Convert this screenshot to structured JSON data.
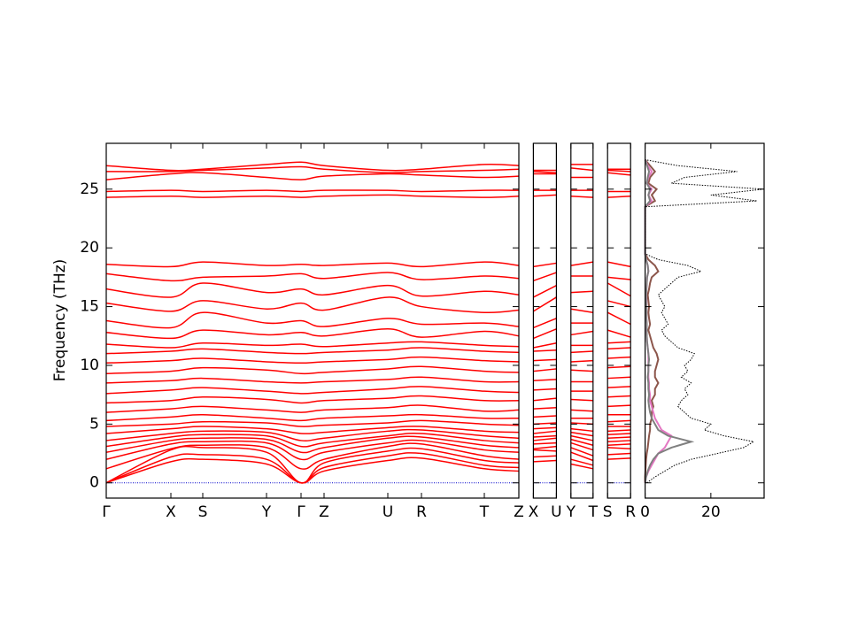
{
  "chart_data": {
    "type": "band-dos",
    "ylabel": "Frequency (THz)",
    "ylim": [
      -1.3,
      28.9
    ],
    "yticks": [
      0,
      5,
      10,
      15,
      20,
      25
    ],
    "band_color": "#ff0000",
    "zero_line_color": "#0000cc",
    "panels": [
      {
        "kdist": [
          0,
          73,
          109,
          181,
          220,
          246,
          318,
          356,
          427,
          466
        ],
        "klabels": [
          "Γ",
          "X",
          "S",
          "Y",
          "Γ",
          "Z",
          "U",
          "R",
          "T",
          "Z"
        ],
        "bands": [
          [
            0,
            1.8,
            2.0,
            1.6,
            0,
            1.0,
            1.9,
            2.1,
            1.2,
            1.0
          ],
          [
            0,
            2.2,
            2.4,
            2.0,
            0,
            1.3,
            2.3,
            2.5,
            1.5,
            1.3
          ],
          [
            0,
            2.8,
            3.0,
            2.6,
            0,
            1.7,
            2.7,
            2.9,
            1.9,
            1.7
          ],
          [
            1.2,
            2.9,
            3.2,
            3.0,
            1.2,
            2.0,
            3.1,
            3.3,
            2.3,
            2.0
          ],
          [
            2.0,
            3.3,
            3.5,
            3.4,
            2.0,
            2.6,
            3.4,
            3.6,
            2.8,
            2.6
          ],
          [
            2.6,
            3.6,
            3.8,
            3.7,
            2.6,
            3.0,
            3.8,
            3.9,
            3.2,
            3.0
          ],
          [
            3.1,
            3.9,
            4.1,
            4.0,
            3.1,
            3.4,
            4.0,
            4.2,
            3.6,
            3.4
          ],
          [
            3.6,
            4.2,
            4.4,
            4.3,
            3.6,
            3.8,
            4.4,
            4.5,
            4.0,
            3.8
          ],
          [
            4.2,
            4.6,
            4.8,
            4.6,
            4.2,
            4.3,
            4.7,
            4.8,
            4.4,
            4.3
          ],
          [
            4.8,
            5.0,
            5.2,
            5.1,
            4.8,
            4.9,
            5.1,
            5.3,
            5.0,
            4.9
          ],
          [
            5.3,
            5.6,
            5.8,
            5.5,
            5.3,
            5.5,
            5.7,
            5.8,
            5.5,
            5.5
          ],
          [
            6.0,
            6.3,
            6.5,
            6.2,
            6.0,
            6.2,
            6.4,
            6.6,
            6.1,
            6.2
          ],
          [
            6.8,
            7.0,
            7.3,
            7.1,
            6.8,
            7.0,
            7.2,
            7.4,
            7.0,
            7.0
          ],
          [
            7.6,
            7.9,
            8.1,
            7.8,
            7.6,
            7.7,
            8.0,
            8.2,
            7.8,
            7.7
          ],
          [
            8.5,
            8.7,
            8.9,
            8.6,
            8.5,
            8.6,
            8.8,
            9.0,
            8.6,
            8.6
          ],
          [
            9.3,
            9.5,
            9.8,
            9.6,
            9.3,
            9.4,
            9.7,
            9.9,
            9.5,
            9.4
          ],
          [
            10.2,
            10.4,
            10.6,
            10.3,
            10.2,
            10.3,
            10.5,
            10.7,
            10.4,
            10.3
          ],
          [
            11.0,
            11.2,
            11.4,
            11.1,
            11.0,
            11.1,
            11.3,
            11.5,
            11.2,
            11.1
          ],
          [
            11.8,
            11.5,
            11.9,
            11.7,
            11.8,
            11.6,
            11.9,
            12.0,
            11.7,
            11.6
          ],
          [
            12.8,
            12.3,
            13.0,
            12.6,
            12.8,
            12.5,
            13.1,
            12.4,
            12.9,
            12.5
          ],
          [
            13.8,
            13.2,
            14.5,
            13.6,
            13.8,
            13.3,
            14.0,
            13.5,
            13.6,
            13.3
          ],
          [
            15.3,
            14.6,
            15.5,
            14.8,
            15.3,
            14.7,
            15.8,
            15.0,
            14.5,
            14.7
          ],
          [
            16.5,
            15.8,
            17.0,
            16.2,
            16.5,
            16.0,
            16.8,
            15.9,
            16.3,
            16.0
          ],
          [
            17.8,
            17.2,
            17.5,
            17.6,
            17.8,
            17.4,
            17.9,
            17.3,
            17.6,
            17.4
          ],
          [
            18.6,
            18.4,
            18.8,
            18.5,
            18.6,
            18.5,
            18.7,
            18.4,
            18.8,
            18.5
          ],
          [
            24.3,
            24.4,
            24.3,
            24.4,
            24.3,
            24.4,
            24.5,
            24.4,
            24.3,
            24.4
          ],
          [
            24.8,
            24.9,
            24.8,
            24.9,
            24.8,
            24.9,
            24.9,
            24.8,
            24.9,
            24.9
          ],
          [
            25.8,
            26.3,
            26.4,
            26.0,
            25.8,
            26.1,
            26.3,
            26.2,
            26.0,
            26.1
          ],
          [
            26.5,
            26.5,
            26.6,
            26.8,
            26.9,
            26.7,
            26.4,
            26.5,
            26.6,
            26.7
          ],
          [
            27.0,
            26.6,
            26.7,
            27.1,
            27.3,
            27.0,
            26.6,
            26.7,
            27.1,
            27.0
          ]
        ]
      },
      {
        "kdist": [
          0,
          26
        ],
        "klabels": [
          "X",
          "U"
        ],
        "bands": [
          [
            1.8,
            1.9
          ],
          [
            2.2,
            2.3
          ],
          [
            2.8,
            2.7
          ],
          [
            2.9,
            3.1
          ],
          [
            3.3,
            3.4
          ],
          [
            3.6,
            3.8
          ],
          [
            3.9,
            4.0
          ],
          [
            4.2,
            4.4
          ],
          [
            4.6,
            4.7
          ],
          [
            5.0,
            5.1
          ],
          [
            5.6,
            5.7
          ],
          [
            6.3,
            6.4
          ],
          [
            7.0,
            7.2
          ],
          [
            7.9,
            8.0
          ],
          [
            8.7,
            8.8
          ],
          [
            9.5,
            9.7
          ],
          [
            10.4,
            10.5
          ],
          [
            11.2,
            11.3
          ],
          [
            11.5,
            11.9
          ],
          [
            12.3,
            13.1
          ],
          [
            13.2,
            14.0
          ],
          [
            14.6,
            15.8
          ],
          [
            15.8,
            16.8
          ],
          [
            17.2,
            17.9
          ],
          [
            18.4,
            18.7
          ],
          [
            24.4,
            24.5
          ],
          [
            24.9,
            24.9
          ],
          [
            26.3,
            26.3
          ],
          [
            26.5,
            26.4
          ],
          [
            26.6,
            26.6
          ]
        ]
      },
      {
        "kdist": [
          0,
          25
        ],
        "klabels": [
          "Y",
          "T"
        ],
        "bands": [
          [
            1.6,
            1.2
          ],
          [
            2.0,
            1.5
          ],
          [
            2.6,
            1.9
          ],
          [
            3.0,
            2.3
          ],
          [
            3.4,
            2.8
          ],
          [
            3.7,
            3.2
          ],
          [
            4.0,
            3.6
          ],
          [
            4.3,
            4.0
          ],
          [
            4.6,
            4.4
          ],
          [
            5.1,
            5.0
          ],
          [
            5.5,
            5.5
          ],
          [
            6.2,
            6.1
          ],
          [
            7.1,
            7.0
          ],
          [
            7.8,
            7.8
          ],
          [
            8.6,
            8.6
          ],
          [
            9.6,
            9.5
          ],
          [
            10.3,
            10.4
          ],
          [
            11.1,
            11.2
          ],
          [
            11.7,
            11.7
          ],
          [
            12.6,
            12.9
          ],
          [
            13.6,
            13.6
          ],
          [
            14.8,
            14.5
          ],
          [
            16.2,
            16.3
          ],
          [
            17.6,
            17.6
          ],
          [
            18.5,
            18.8
          ],
          [
            24.4,
            24.3
          ],
          [
            24.9,
            24.9
          ],
          [
            26.0,
            26.0
          ],
          [
            26.8,
            26.6
          ],
          [
            27.1,
            27.1
          ]
        ]
      },
      {
        "kdist": [
          0,
          26
        ],
        "klabels": [
          "S",
          "R"
        ],
        "bands": [
          [
            2.0,
            2.1
          ],
          [
            2.4,
            2.5
          ],
          [
            3.0,
            2.9
          ],
          [
            3.2,
            3.3
          ],
          [
            3.5,
            3.6
          ],
          [
            3.8,
            3.9
          ],
          [
            4.1,
            4.2
          ],
          [
            4.4,
            4.5
          ],
          [
            4.8,
            4.8
          ],
          [
            5.2,
            5.3
          ],
          [
            5.8,
            5.8
          ],
          [
            6.5,
            6.6
          ],
          [
            7.3,
            7.4
          ],
          [
            8.1,
            8.2
          ],
          [
            8.9,
            9.0
          ],
          [
            9.8,
            9.9
          ],
          [
            10.6,
            10.7
          ],
          [
            11.4,
            11.5
          ],
          [
            11.9,
            12.0
          ],
          [
            13.0,
            12.4
          ],
          [
            14.5,
            13.5
          ],
          [
            15.5,
            15.0
          ],
          [
            17.0,
            15.9
          ],
          [
            17.5,
            17.3
          ],
          [
            18.8,
            18.4
          ],
          [
            24.3,
            24.4
          ],
          [
            24.8,
            24.8
          ],
          [
            26.4,
            26.2
          ],
          [
            26.6,
            26.5
          ],
          [
            26.7,
            26.7
          ]
        ]
      }
    ],
    "dos": {
      "xlim": [
        0,
        36.2
      ],
      "xticks": [
        0,
        20
      ],
      "frequencies": [
        0,
        0.5,
        1,
        1.5,
        2,
        2.5,
        3,
        3.5,
        4,
        4.5,
        5,
        5.5,
        6,
        6.5,
        7,
        7.5,
        8,
        8.5,
        9,
        9.5,
        10,
        10.5,
        11,
        11.5,
        12,
        12.5,
        13,
        13.5,
        14,
        14.5,
        15,
        15.5,
        16,
        16.5,
        17,
        17.5,
        18,
        18.5,
        19,
        19.5,
        20,
        20.5,
        21,
        21.5,
        22,
        22.5,
        23,
        23.5,
        24,
        24.5,
        25,
        25.5,
        26,
        26.5,
        27,
        27.5
      ],
      "series": [
        {
          "color": "#000000",
          "style": "dotted",
          "values": [
            0.5,
            3,
            6,
            9,
            14,
            22,
            30,
            33,
            24,
            18,
            20,
            14,
            12,
            10,
            11,
            13,
            12,
            14,
            11,
            13,
            12,
            14,
            15,
            10,
            8,
            6,
            5,
            7,
            6,
            5,
            6,
            5,
            4,
            6,
            8,
            10,
            17,
            13,
            4,
            0,
            0,
            0,
            0,
            0,
            0,
            0,
            0,
            0,
            34,
            20,
            36,
            8,
            12,
            28,
            10,
            0
          ]
        },
        {
          "color": "#808080",
          "style": "solid",
          "values": [
            0,
            0.3,
            0.8,
            1.5,
            2.5,
            4,
            8,
            14,
            7,
            4,
            3,
            2,
            1.5,
            1.2,
            1,
            1.2,
            1,
            1,
            0.8,
            1,
            1,
            1.2,
            1,
            0.8,
            0.6,
            0.5,
            0.5,
            0.5,
            0.4,
            0.4,
            0.4,
            0.3,
            0.3,
            0.4,
            0.5,
            0.6,
            1,
            0.8,
            0.3,
            0,
            0,
            0,
            0,
            0,
            0,
            0,
            0,
            0,
            1.5,
            1,
            1.5,
            0.5,
            0.8,
            1.2,
            0.6,
            0
          ]
        },
        {
          "color": "#e377c2",
          "style": "solid",
          "values": [
            0,
            0.3,
            1,
            2,
            3,
            4,
            6,
            7,
            8,
            5,
            4,
            3,
            2.5,
            2,
            1.5,
            1.5,
            1.2,
            1.2,
            1,
            1,
            1,
            1,
            1,
            0.8,
            0.6,
            0.5,
            0.4,
            0.5,
            0.4,
            0.4,
            0.4,
            0.4,
            0.3,
            0.4,
            0.5,
            0.6,
            1,
            0.8,
            0.3,
            0,
            0,
            0,
            0,
            0,
            0,
            0,
            0,
            0,
            2,
            1,
            2,
            0.5,
            1,
            2,
            0.8,
            0
          ]
        },
        {
          "color": "#8c564b",
          "style": "solid",
          "values": [
            0,
            0,
            0.1,
            0.2,
            0.3,
            0.5,
            0.8,
            1,
            1.2,
            1.5,
            1.5,
            2,
            2,
            2.5,
            2,
            3,
            3,
            4,
            3,
            3,
            3.5,
            4,
            3.5,
            2.5,
            2,
            1.5,
            1,
            1.5,
            1.2,
            1,
            1.2,
            1,
            0.8,
            1.2,
            1.5,
            2,
            4,
            3,
            1,
            0,
            0,
            0,
            0,
            0,
            0,
            0,
            0,
            0,
            3,
            2,
            3.5,
            1,
            1.5,
            3,
            1.5,
            0
          ]
        }
      ]
    }
  }
}
